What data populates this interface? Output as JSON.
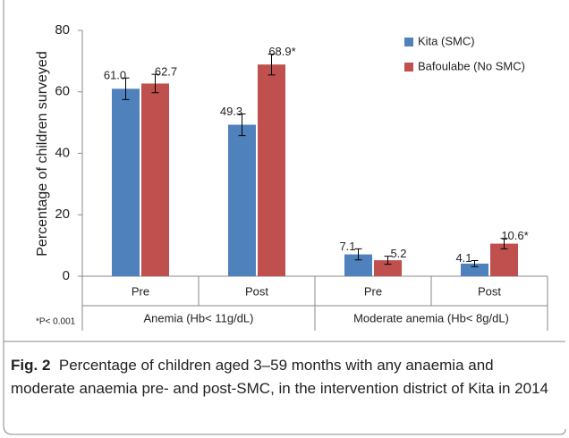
{
  "chart_data": {
    "type": "bar",
    "y_label": "Percentage of children surveyed",
    "categories": [
      "Pre",
      "Post",
      "Pre",
      "Post"
    ],
    "groups": [
      "Anemia (Hb< 11g/dL)",
      "Moderate anemia (Hb< 8g/dL)"
    ],
    "series": [
      {
        "name": "Kita (SMC)",
        "color": "#4f81bd",
        "values": [
          61.0,
          49.3,
          7.1,
          4.1
        ],
        "value_labels": [
          "61.0",
          "49.3",
          "7.1",
          "4.1"
        ],
        "errors": [
          3.5,
          3.5,
          1.8,
          1.0
        ]
      },
      {
        "name": "Bafoulabe (No SMC)",
        "color": "#c0504d",
        "values": [
          62.7,
          68.9,
          5.2,
          10.6
        ],
        "value_labels": [
          "62.7",
          "68.9*",
          "5.2",
          "10.6*"
        ],
        "errors": [
          3.0,
          3.4,
          1.3,
          1.7
        ]
      }
    ],
    "ylim": [
      0,
      80
    ],
    "yticks": [
      0,
      20,
      40,
      60,
      80
    ],
    "footnote": "*P< 0.001",
    "figure_label": "Fig. 2",
    "caption": "Percentage of children aged 3–59 months with any anaemia and moderate anaemia pre- and post-SMC, in the intervention district of Kita in 2014"
  }
}
